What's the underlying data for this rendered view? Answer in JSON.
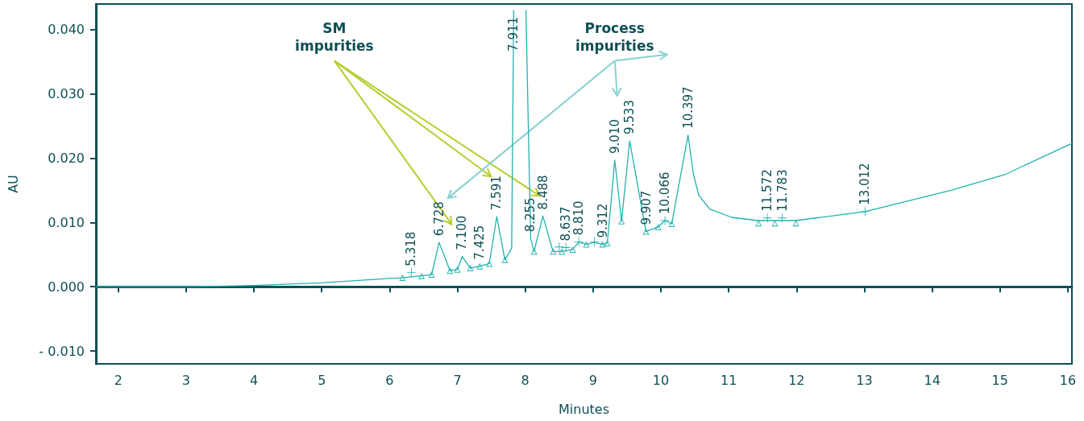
{
  "chart_data": {
    "type": "line",
    "xlabel": "Minutes",
    "ylabel": "AU",
    "xlim": [
      1.67,
      16.06
    ],
    "xticks": [
      2,
      3,
      4,
      5,
      6,
      7,
      8,
      9,
      10,
      11,
      12,
      13,
      14,
      15,
      16
    ],
    "ylim": [
      -0.012,
      0.044
    ],
    "yticks": [
      {
        "value": -0.01,
        "label": "- 0.010"
      },
      {
        "value": 0,
        "label": "0.000"
      },
      {
        "value": 0.01,
        "label": "0.010"
      },
      {
        "value": 0.02,
        "label": "0.020"
      },
      {
        "value": 0.03,
        "label": "0.030"
      },
      {
        "value": 0.04,
        "label": "0.040"
      }
    ],
    "grid": false,
    "series": [
      {
        "color": "#1fb3ad",
        "marker": "none",
        "x": [
          1.67,
          3,
          4,
          5,
          6,
          6.19,
          6.47,
          6.62,
          6.73,
          6.89,
          7.0,
          7.07,
          7.19,
          7.33,
          7.47,
          7.58,
          7.7,
          7.8,
          7.83,
          7.92,
          8.01,
          8.08,
          8.13,
          8.26,
          8.41,
          8.54,
          8.7,
          8.79,
          8.9,
          9.02,
          9.14,
          9.21,
          9.32,
          9.42,
          9.54,
          9.78,
          9.96,
          10.06,
          10.16,
          10.4,
          10.48,
          10.56,
          10.72,
          11.04,
          11.43,
          11.99,
          13.01,
          14.28,
          15.08,
          16.06
        ],
        "values": [
          0,
          0,
          0.0002,
          0.0006,
          0.0013,
          0.0014,
          0.0017,
          0.0019,
          0.0069,
          0.0025,
          0.0027,
          0.0047,
          0.0029,
          0.0032,
          0.0036,
          0.0109,
          0.0042,
          0.006,
          0.043,
          null,
          0.043,
          0.0075,
          0.0055,
          0.011,
          0.0055,
          0.0055,
          0.0058,
          0.007,
          0.0066,
          0.0069,
          0.0066,
          0.0068,
          0.0197,
          0.0102,
          0.0227,
          0.0086,
          0.0093,
          0.0103,
          0.0098,
          0.0236,
          0.0175,
          0.0142,
          0.0121,
          0.0108,
          0.0103,
          0.0103,
          0.0117,
          0.015,
          0.0175,
          0.0223
        ]
      },
      {
        "type": "scatter",
        "color": "#1fb3ad",
        "marker": "triangle",
        "x": [
          6.19,
          6.47,
          6.62,
          6.89,
          7.0,
          7.19,
          7.33,
          7.47,
          7.7,
          8.13,
          8.41,
          8.54,
          8.7,
          8.9,
          9.14,
          9.21,
          9.42,
          9.78,
          9.96,
          10.16,
          11.44,
          11.68,
          11.99
        ],
        "values": [
          0.0014,
          0.0017,
          0.0019,
          0.0025,
          0.0027,
          0.0029,
          0.0032,
          0.0036,
          0.0042,
          0.0055,
          0.0055,
          0.0055,
          0.0058,
          0.0066,
          0.0066,
          0.0068,
          0.0102,
          0.0086,
          0.0093,
          0.0098,
          0.0099,
          0.0099,
          0.0099
        ]
      },
      {
        "type": "scatter",
        "color": "#1fb3ad",
        "marker": "cross",
        "x": [
          6.32,
          8.5,
          8.6,
          8.79,
          9.02,
          10.06,
          11.57,
          11.79,
          13.01
        ],
        "values": [
          0.0022,
          0.0062,
          0.0061,
          0.007,
          0.007,
          0.0103,
          0.0107,
          0.0107,
          0.0117
        ]
      }
    ],
    "annotations": [
      "SM impurities",
      "Process impurities",
      {
        "text": "5.318",
        "x": 6.32,
        "y": 0.0022
      },
      {
        "text": "6.728",
        "x": 6.73,
        "y": 0.0069
      },
      {
        "text": "7.100",
        "x": 7.07,
        "y": 0.0047
      },
      {
        "text": "7.425",
        "x": 7.33,
        "y": 0.0032
      },
      {
        "text": "7.591",
        "x": 7.58,
        "y": 0.0109
      },
      {
        "text": "7.911",
        "x": 7.83,
        "y": 0.043
      },
      {
        "text": "8.255",
        "x": 8.08,
        "y": 0.0075
      },
      {
        "text": "8.488",
        "x": 8.26,
        "y": 0.011
      },
      {
        "text": "8.637",
        "x": 8.6,
        "y": 0.0061
      },
      {
        "text": "8.810",
        "x": 8.79,
        "y": 0.007
      },
      {
        "text": "9.312",
        "x": 9.14,
        "y": 0.0066
      },
      {
        "text": "9.010",
        "x": 9.32,
        "y": 0.0197
      },
      {
        "text": "9.533",
        "x": 9.54,
        "y": 0.0227
      },
      {
        "text": "9.907",
        "x": 9.78,
        "y": 0.0086
      },
      {
        "text": "10.066",
        "x": 10.06,
        "y": 0.0103
      },
      {
        "text": "10.397",
        "x": 10.4,
        "y": 0.0236
      },
      {
        "text": "11.572",
        "x": 11.57,
        "y": 0.0107
      },
      {
        "text": "11.783",
        "x": 11.79,
        "y": 0.0107
      },
      {
        "text": "13.012",
        "x": 13.01,
        "y": 0.0117
      }
    ]
  }
}
